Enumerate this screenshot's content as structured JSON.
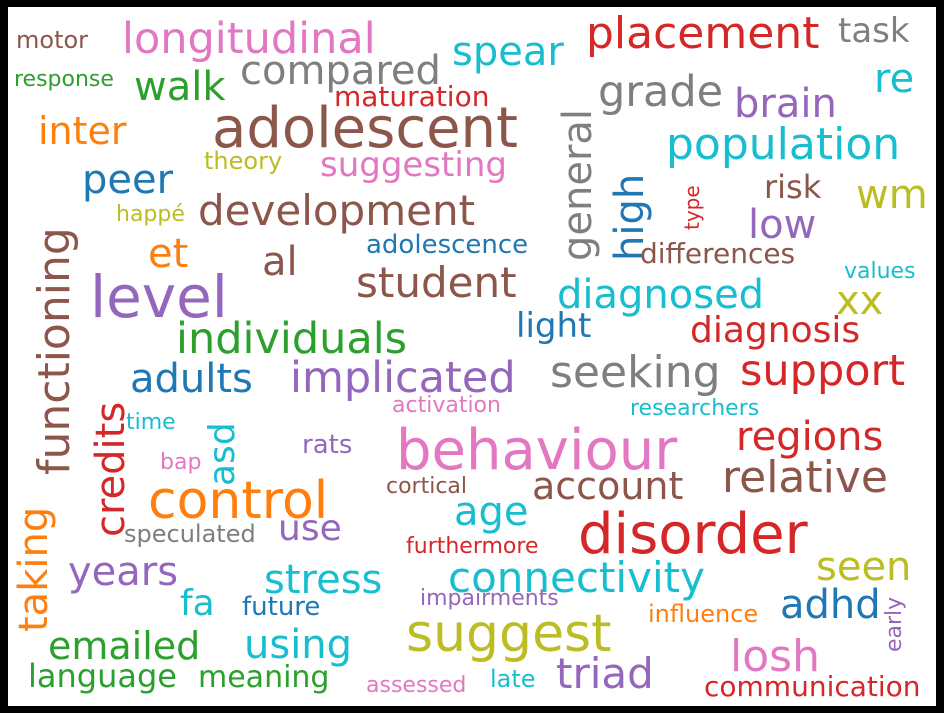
{
  "palette": {
    "blue": "#1f77b4",
    "orange": "#ff7f0e",
    "green": "#2ca02c",
    "red": "#d62728",
    "purple": "#9467bd",
    "brown": "#8c564b",
    "pink": "#e377c2",
    "gray": "#7f7f7f",
    "olive": "#bcbd22",
    "cyan": "#17becf"
  },
  "words": [
    {
      "text": "adolescent",
      "color": "#8c564b"
    },
    {
      "text": "behaviour",
      "color": "#e377c2"
    },
    {
      "text": "control",
      "color": "#ff7f0e"
    },
    {
      "text": "disorder",
      "color": "#d62728"
    },
    {
      "text": "level",
      "color": "#9467bd"
    },
    {
      "text": "suggest",
      "color": "#bcbd22"
    },
    {
      "text": "functioning",
      "color": "#8c564b"
    },
    {
      "text": "longitudinal",
      "color": "#e377c2"
    },
    {
      "text": "placement",
      "color": "#d62728"
    },
    {
      "text": "implicated",
      "color": "#9467bd"
    },
    {
      "text": "population",
      "color": "#17becf"
    },
    {
      "text": "development",
      "color": "#8c564b"
    },
    {
      "text": "connectivity",
      "color": "#17becf"
    },
    {
      "text": "individuals",
      "color": "#2ca02c"
    },
    {
      "text": "diagnosed",
      "color": "#17becf"
    },
    {
      "text": "seeking",
      "color": "#7f7f7f"
    },
    {
      "text": "support",
      "color": "#d62728"
    },
    {
      "text": "relative",
      "color": "#8c564b"
    },
    {
      "text": "regions",
      "color": "#d62728"
    },
    {
      "text": "student",
      "color": "#8c564b"
    },
    {
      "text": "compared",
      "color": "#7f7f7f"
    },
    {
      "text": "general",
      "color": "#7f7f7f"
    },
    {
      "text": "adults",
      "color": "#1f77b4"
    },
    {
      "text": "credits",
      "color": "#d62728"
    },
    {
      "text": "taking",
      "color": "#ff7f0e"
    },
    {
      "text": "spear",
      "color": "#17becf"
    },
    {
      "text": "grade",
      "color": "#7f7f7f"
    },
    {
      "text": "brain",
      "color": "#9467bd"
    },
    {
      "text": "triad",
      "color": "#9467bd"
    },
    {
      "text": "losh",
      "color": "#e377c2"
    },
    {
      "text": "stress",
      "color": "#17becf"
    },
    {
      "text": "using",
      "color": "#17becf"
    },
    {
      "text": "emailed",
      "color": "#2ca02c"
    },
    {
      "text": "years",
      "color": "#9467bd"
    },
    {
      "text": "account",
      "color": "#8c564b"
    },
    {
      "text": "age",
      "color": "#17becf"
    },
    {
      "text": "seen",
      "color": "#bcbd22"
    },
    {
      "text": "adhd",
      "color": "#1f77b4"
    },
    {
      "text": "diagnosis",
      "color": "#d62728"
    },
    {
      "text": "walk",
      "color": "#2ca02c"
    },
    {
      "text": "inter",
      "color": "#ff7f0e"
    },
    {
      "text": "peer",
      "color": "#1f77b4"
    },
    {
      "text": "high",
      "color": "#1f77b4"
    },
    {
      "text": "re",
      "color": "#17becf"
    },
    {
      "text": "wm",
      "color": "#bcbd22"
    },
    {
      "text": "low",
      "color": "#9467bd"
    },
    {
      "text": "xx",
      "color": "#bcbd22"
    },
    {
      "text": "et",
      "color": "#ff7f0e"
    },
    {
      "text": "al",
      "color": "#8c564b"
    },
    {
      "text": "suggesting",
      "color": "#e377c2"
    },
    {
      "text": "light",
      "color": "#1f77b4"
    },
    {
      "text": "use",
      "color": "#9467bd"
    },
    {
      "text": "fa",
      "color": "#17becf"
    },
    {
      "text": "asd",
      "color": "#17becf"
    },
    {
      "text": "risk",
      "color": "#8c564b"
    },
    {
      "text": "language",
      "color": "#2ca02c"
    },
    {
      "text": "meaning",
      "color": "#2ca02c"
    },
    {
      "text": "communication",
      "color": "#d62728"
    },
    {
      "text": "maturation",
      "color": "#d62728"
    },
    {
      "text": "differences",
      "color": "#8c564b"
    },
    {
      "text": "adolescence",
      "color": "#1f77b4"
    },
    {
      "text": "task",
      "color": "#7f7f7f"
    },
    {
      "text": "motor",
      "color": "#8c564b"
    },
    {
      "text": "response",
      "color": "#2ca02c"
    },
    {
      "text": "theory",
      "color": "#bcbd22"
    },
    {
      "text": "happé",
      "color": "#bcbd22"
    },
    {
      "text": "type",
      "color": "#d62728"
    },
    {
      "text": "values",
      "color": "#17becf"
    },
    {
      "text": "rats",
      "color": "#9467bd"
    },
    {
      "text": "activation",
      "color": "#e377c2"
    },
    {
      "text": "researchers",
      "color": "#17becf"
    },
    {
      "text": "time",
      "color": "#17becf"
    },
    {
      "text": "bap",
      "color": "#e377c2"
    },
    {
      "text": "cortical",
      "color": "#8c564b"
    },
    {
      "text": "speculated",
      "color": "#7f7f7f"
    },
    {
      "text": "furthermore",
      "color": "#d62728"
    },
    {
      "text": "future",
      "color": "#1f77b4"
    },
    {
      "text": "impairments",
      "color": "#9467bd"
    },
    {
      "text": "influence",
      "color": "#ff7f0e"
    },
    {
      "text": "early",
      "color": "#9467bd"
    },
    {
      "text": "assessed",
      "color": "#e377c2"
    },
    {
      "text": "late",
      "color": "#17becf"
    }
  ]
}
